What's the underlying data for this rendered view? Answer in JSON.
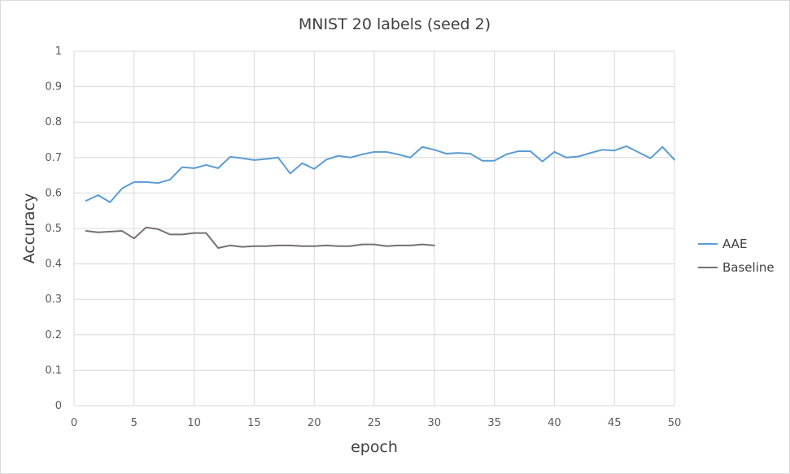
{
  "chart_data": {
    "type": "line",
    "title": "MNIST 20 labels (seed 2)",
    "xlabel": "epoch",
    "ylabel": "Accuracy",
    "xlim": [
      0,
      50
    ],
    "ylim": [
      0,
      1
    ],
    "x_ticks": [
      "0",
      "5",
      "10",
      "15",
      "20",
      "25",
      "30",
      "35",
      "40",
      "45",
      "50"
    ],
    "y_ticks": [
      "0",
      "0.1",
      "0.2",
      "0.3",
      "0.4",
      "0.5",
      "0.6",
      "0.7",
      "0.8",
      "0.9",
      "1"
    ],
    "grid": true,
    "legend_position": "right",
    "series": [
      {
        "name": "AAE",
        "color": "#5b9bd5",
        "x": [
          1,
          2,
          3,
          4,
          5,
          6,
          7,
          8,
          9,
          10,
          11,
          12,
          13,
          14,
          15,
          16,
          17,
          18,
          19,
          20,
          21,
          22,
          23,
          24,
          25,
          26,
          27,
          28,
          29,
          30,
          31,
          32,
          33,
          34,
          35,
          36,
          37,
          38,
          39,
          40,
          41,
          42,
          43,
          44,
          45,
          46,
          47,
          48,
          49,
          50
        ],
        "values": [
          0.578,
          0.594,
          0.574,
          0.613,
          0.631,
          0.631,
          0.628,
          0.638,
          0.673,
          0.67,
          0.679,
          0.67,
          0.702,
          0.698,
          0.693,
          0.696,
          0.7,
          0.655,
          0.684,
          0.668,
          0.694,
          0.705,
          0.7,
          0.709,
          0.716,
          0.716,
          0.709,
          0.7,
          0.73,
          0.722,
          0.711,
          0.713,
          0.711,
          0.691,
          0.691,
          0.709,
          0.718,
          0.718,
          0.689,
          0.716,
          0.7,
          0.703,
          0.713,
          0.722,
          0.72,
          0.732,
          0.715,
          0.698,
          0.73,
          0.694
        ]
      },
      {
        "name": "Baseline",
        "color": "#767171",
        "x": [
          1,
          2,
          3,
          4,
          5,
          6,
          7,
          8,
          9,
          10,
          11,
          12,
          13,
          14,
          15,
          16,
          17,
          18,
          19,
          20,
          21,
          22,
          23,
          24,
          25,
          26,
          27,
          28,
          29,
          30
        ],
        "values": [
          0.493,
          0.489,
          0.491,
          0.493,
          0.472,
          0.503,
          0.498,
          0.483,
          0.483,
          0.487,
          0.487,
          0.445,
          0.452,
          0.448,
          0.45,
          0.45,
          0.452,
          0.452,
          0.45,
          0.45,
          0.452,
          0.45,
          0.45,
          0.455,
          0.455,
          0.45,
          0.452,
          0.452,
          0.455,
          0.452
        ]
      }
    ]
  }
}
